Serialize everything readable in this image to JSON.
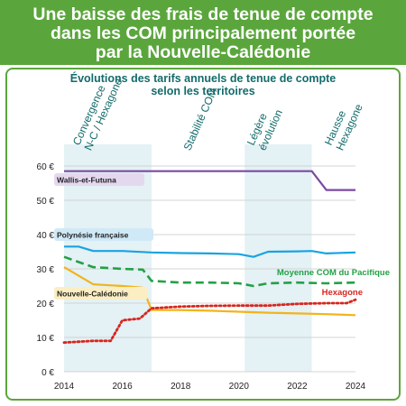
{
  "header": {
    "title_lines": [
      "Une baisse des frais de tenue de compte",
      "dans les COM principalement portée",
      "par la Nouvelle-Calédonie"
    ]
  },
  "subtitle_lines": [
    "Évolutions des tarifs annuels de tenue de compte",
    "selon les territoires"
  ],
  "colors": {
    "banner": "#5aa63c",
    "subtitle": "#146b6b",
    "band": "#e4f1f5",
    "wallis": "#7a4aa3",
    "polynesie": "#1aa3e0",
    "nc": "#f2b41a",
    "hexagone": "#d7261e",
    "moyenne": "#23a046"
  },
  "chart_data": {
    "type": "line",
    "xlim": [
      2014,
      2024
    ],
    "ylim": [
      0,
      60
    ],
    "x_ticks": [
      "2014",
      "2016",
      "2018",
      "2020",
      "2022",
      "2024"
    ],
    "y_ticks": [
      "0 €",
      "10 €",
      "20 €",
      "30 €",
      "40 €",
      "50 €",
      "60 €"
    ],
    "grid": true,
    "periods": [
      {
        "label_lines": [
          "Convergence",
          "N-C / Hexagone"
        ],
        "from": 2014,
        "to": 2017,
        "shaded": true
      },
      {
        "label_lines": [
          "Stabilité COM"
        ],
        "from": 2017,
        "to": 2020.2,
        "shaded": false
      },
      {
        "label_lines": [
          "Légère",
          "évolution"
        ],
        "from": 2020.2,
        "to": 2022.5,
        "shaded": true
      },
      {
        "label_lines": [
          "Hausse",
          "Hexagone"
        ],
        "from": 2022.5,
        "to": 2024,
        "shaded": false
      }
    ],
    "series": [
      {
        "name": "Wallis-et-Futuna",
        "style": "solid",
        "x": [
          2014,
          2015,
          2016,
          2017,
          2018,
          2019,
          2020,
          2021,
          2022,
          2022.5,
          2023,
          2024
        ],
        "values": [
          58.5,
          58.5,
          58.5,
          58.5,
          58.5,
          58.5,
          58.5,
          58.5,
          58.5,
          58.5,
          53,
          53
        ]
      },
      {
        "name": "Polynésie française",
        "style": "solid",
        "x": [
          2014,
          2014.5,
          2015,
          2016,
          2017,
          2018,
          2019,
          2020,
          2020.5,
          2021,
          2022,
          2022.5,
          2023,
          2024
        ],
        "values": [
          36.5,
          36.5,
          35.2,
          35.2,
          34.8,
          34.6,
          34.5,
          34.3,
          33.5,
          35,
          35.1,
          35.2,
          34.5,
          34.8
        ]
      },
      {
        "name": "Moyenne COM du Pacifique",
        "style": "dashed",
        "x": [
          2014,
          2015,
          2016,
          2016.7,
          2017,
          2018,
          2019,
          2020,
          2020.5,
          2021,
          2022,
          2023,
          2024
        ],
        "values": [
          33.5,
          30.5,
          30,
          29.8,
          26.5,
          26,
          26,
          25.8,
          25,
          25.8,
          26,
          25.8,
          26
        ]
      },
      {
        "name": "Nouvelle-Calédonie",
        "style": "solid",
        "x": [
          2014,
          2015,
          2016,
          2016.7,
          2017,
          2018,
          2019,
          2020,
          2021,
          2022,
          2023,
          2024
        ],
        "values": [
          30.5,
          25.5,
          25,
          24.5,
          18,
          18,
          17.8,
          17.5,
          17.2,
          17,
          16.8,
          16.5
        ]
      },
      {
        "name": "Hexagone",
        "style": "dotted",
        "x": [
          2014,
          2015,
          2015.6,
          2016,
          2016.6,
          2017,
          2018,
          2019,
          2020,
          2021,
          2022,
          2023,
          2023.7,
          2024
        ],
        "values": [
          8.5,
          9,
          9,
          15,
          15.5,
          18.5,
          19,
          19.2,
          19.3,
          19.3,
          19.8,
          20,
          20,
          21
        ]
      }
    ]
  }
}
